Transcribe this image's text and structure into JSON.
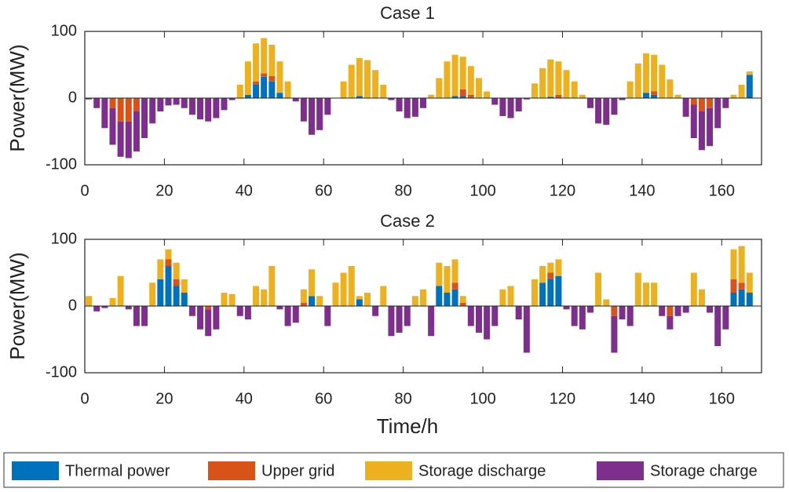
{
  "chart_data": [
    {
      "type": "bar",
      "title": "Case 1",
      "ylabel": "Power(MW)",
      "stacked": true,
      "xlim": [
        0,
        170
      ],
      "ylim": [
        -100,
        100
      ],
      "xticks": [
        0,
        20,
        40,
        60,
        80,
        100,
        120,
        140,
        160
      ],
      "yticks": [
        -100,
        0,
        100
      ],
      "x": [
        1,
        3,
        5,
        7,
        9,
        11,
        13,
        15,
        17,
        19,
        21,
        23,
        25,
        27,
        29,
        31,
        33,
        35,
        37,
        39,
        41,
        43,
        45,
        47,
        49,
        51,
        53,
        55,
        57,
        59,
        61,
        63,
        65,
        67,
        69,
        71,
        73,
        75,
        77,
        79,
        81,
        83,
        85,
        87,
        89,
        91,
        93,
        95,
        97,
        99,
        101,
        103,
        105,
        107,
        109,
        111,
        113,
        115,
        117,
        119,
        121,
        123,
        125,
        127,
        129,
        131,
        133,
        135,
        137,
        139,
        141,
        143,
        145,
        147,
        149,
        151,
        153,
        155,
        157,
        159,
        161,
        163,
        165,
        167
      ],
      "series": [
        {
          "name": "Thermal power",
          "color": "#0072bd",
          "values": [
            0,
            0,
            0,
            0,
            0,
            0,
            0,
            0,
            0,
            0,
            0,
            0,
            0,
            0,
            0,
            0,
            0,
            0,
            0,
            0,
            5,
            20,
            32,
            25,
            8,
            0,
            0,
            0,
            0,
            0,
            0,
            0,
            0,
            0,
            3,
            0,
            0,
            0,
            0,
            0,
            0,
            0,
            0,
            0,
            0,
            0,
            3,
            3,
            0,
            0,
            0,
            0,
            0,
            0,
            0,
            0,
            0,
            0,
            2,
            0,
            0,
            0,
            0,
            0,
            0,
            0,
            0,
            0,
            0,
            0,
            8,
            5,
            0,
            0,
            0,
            0,
            0,
            0,
            0,
            0,
            0,
            0,
            0,
            35
          ]
        },
        {
          "name": "Upper grid",
          "color": "#d95319",
          "values": [
            0,
            0,
            0,
            -15,
            -35,
            -35,
            -20,
            0,
            0,
            0,
            0,
            0,
            0,
            0,
            0,
            0,
            0,
            0,
            0,
            0,
            0,
            5,
            5,
            8,
            0,
            0,
            0,
            0,
            0,
            0,
            0,
            0,
            0,
            0,
            0,
            0,
            0,
            0,
            0,
            0,
            0,
            0,
            0,
            0,
            0,
            0,
            0,
            10,
            5,
            0,
            0,
            0,
            0,
            0,
            0,
            0,
            0,
            0,
            0,
            5,
            0,
            0,
            0,
            0,
            0,
            0,
            0,
            0,
            0,
            0,
            0,
            5,
            0,
            0,
            0,
            0,
            -10,
            -20,
            -15,
            0,
            0,
            0,
            0,
            0
          ]
        },
        {
          "name": "Storage discharge",
          "color": "#edb120",
          "values": [
            0,
            0,
            0,
            0,
            0,
            0,
            0,
            0,
            0,
            0,
            0,
            0,
            0,
            0,
            0,
            0,
            0,
            0,
            0,
            20,
            50,
            57,
            53,
            47,
            47,
            25,
            0,
            0,
            0,
            0,
            0,
            0,
            25,
            50,
            57,
            57,
            42,
            20,
            0,
            0,
            0,
            0,
            0,
            5,
            30,
            55,
            62,
            49,
            43,
            30,
            10,
            0,
            0,
            0,
            0,
            0,
            22,
            45,
            56,
            50,
            42,
            25,
            5,
            0,
            0,
            0,
            0,
            0,
            25,
            52,
            59,
            55,
            50,
            28,
            5,
            0,
            0,
            0,
            0,
            0,
            0,
            5,
            20,
            5
          ]
        },
        {
          "name": "Storage charge",
          "color": "#7e2f8e",
          "values": [
            -2,
            -15,
            -45,
            -55,
            -53,
            -55,
            -60,
            -60,
            -38,
            -20,
            -11,
            -10,
            -15,
            -25,
            -32,
            -35,
            -30,
            -18,
            -3,
            0,
            0,
            0,
            0,
            0,
            0,
            0,
            -5,
            -35,
            -55,
            -48,
            -25,
            0,
            0,
            0,
            0,
            0,
            0,
            0,
            -3,
            -20,
            -30,
            -28,
            -15,
            0,
            0,
            0,
            0,
            0,
            0,
            0,
            0,
            -10,
            -27,
            -30,
            -20,
            -2,
            0,
            0,
            0,
            0,
            0,
            0,
            0,
            -15,
            -38,
            -40,
            -25,
            -3,
            0,
            0,
            0,
            0,
            0,
            0,
            0,
            -28,
            -50,
            -58,
            -57,
            -45,
            -15,
            0,
            0,
            0
          ]
        }
      ]
    },
    {
      "type": "bar",
      "title": "Case 2",
      "ylabel": "Power(MW)",
      "xlabel": "Time/h",
      "stacked": true,
      "xlim": [
        0,
        170
      ],
      "ylim": [
        -100,
        100
      ],
      "xticks": [
        0,
        20,
        40,
        60,
        80,
        100,
        120,
        140,
        160
      ],
      "yticks": [
        -100,
        0,
        100
      ],
      "x": [
        1,
        3,
        5,
        7,
        9,
        11,
        13,
        15,
        17,
        19,
        21,
        23,
        25,
        27,
        29,
        31,
        33,
        35,
        37,
        39,
        41,
        43,
        45,
        47,
        49,
        51,
        53,
        55,
        57,
        59,
        61,
        63,
        65,
        67,
        69,
        71,
        73,
        75,
        77,
        79,
        81,
        83,
        85,
        87,
        89,
        91,
        93,
        95,
        97,
        99,
        101,
        103,
        105,
        107,
        109,
        111,
        113,
        115,
        117,
        119,
        121,
        123,
        125,
        127,
        129,
        131,
        133,
        135,
        137,
        139,
        141,
        143,
        145,
        147,
        149,
        151,
        153,
        155,
        157,
        159,
        161,
        163,
        165,
        167
      ],
      "series": [
        {
          "name": "Thermal power",
          "color": "#0072bd",
          "values": [
            0,
            0,
            0,
            0,
            0,
            0,
            0,
            0,
            0,
            40,
            60,
            30,
            20,
            0,
            0,
            0,
            0,
            0,
            0,
            0,
            0,
            0,
            0,
            0,
            0,
            0,
            0,
            0,
            15,
            0,
            0,
            0,
            0,
            0,
            10,
            0,
            0,
            0,
            0,
            0,
            0,
            0,
            0,
            0,
            30,
            20,
            25,
            0,
            0,
            0,
            0,
            0,
            0,
            0,
            0,
            0,
            0,
            35,
            40,
            45,
            0,
            0,
            0,
            0,
            0,
            0,
            0,
            0,
            0,
            0,
            0,
            0,
            0,
            0,
            0,
            0,
            0,
            0,
            0,
            0,
            0,
            20,
            25,
            20
          ]
        },
        {
          "name": "Upper grid",
          "color": "#d95319",
          "values": [
            0,
            0,
            0,
            0,
            0,
            0,
            0,
            0,
            0,
            0,
            10,
            10,
            0,
            0,
            0,
            -5,
            0,
            0,
            0,
            0,
            0,
            0,
            0,
            0,
            0,
            0,
            0,
            5,
            0,
            0,
            0,
            0,
            0,
            0,
            0,
            0,
            0,
            0,
            0,
            0,
            0,
            0,
            0,
            0,
            0,
            0,
            10,
            5,
            0,
            0,
            0,
            0,
            0,
            0,
            0,
            0,
            0,
            0,
            10,
            0,
            0,
            0,
            0,
            0,
            0,
            0,
            -15,
            0,
            0,
            0,
            0,
            0,
            0,
            -15,
            0,
            0,
            0,
            0,
            0,
            0,
            0,
            20,
            10,
            0
          ]
        },
        {
          "name": "Storage discharge",
          "color": "#edb120",
          "values": [
            15,
            0,
            0,
            12,
            45,
            0,
            0,
            0,
            35,
            30,
            15,
            25,
            20,
            0,
            0,
            0,
            0,
            20,
            18,
            0,
            0,
            30,
            25,
            60,
            0,
            0,
            0,
            20,
            40,
            15,
            0,
            35,
            50,
            60,
            5,
            20,
            0,
            30,
            0,
            0,
            0,
            15,
            25,
            0,
            35,
            40,
            35,
            10,
            0,
            0,
            0,
            0,
            25,
            30,
            0,
            0,
            40,
            25,
            15,
            25,
            0,
            0,
            0,
            0,
            50,
            10,
            0,
            0,
            0,
            50,
            35,
            35,
            0,
            0,
            0,
            0,
            50,
            25,
            0,
            0,
            0,
            45,
            55,
            30
          ]
        },
        {
          "name": "Storage charge",
          "color": "#7e2f8e",
          "values": [
            0,
            -8,
            -3,
            0,
            0,
            -5,
            -30,
            -30,
            0,
            0,
            0,
            0,
            0,
            -15,
            -35,
            -40,
            -35,
            0,
            0,
            -15,
            -20,
            0,
            0,
            0,
            -5,
            -30,
            -25,
            0,
            0,
            0,
            -30,
            0,
            0,
            0,
            0,
            0,
            -15,
            0,
            -45,
            -40,
            -30,
            0,
            0,
            -45,
            0,
            0,
            0,
            0,
            -30,
            -40,
            -50,
            -30,
            0,
            0,
            -20,
            -70,
            0,
            0,
            0,
            0,
            -5,
            -30,
            -35,
            -10,
            0,
            0,
            -55,
            -20,
            -30,
            0,
            0,
            0,
            -15,
            -20,
            -15,
            -10,
            0,
            0,
            -10,
            -60,
            -35,
            0,
            0,
            0
          ]
        }
      ]
    }
  ]
}
